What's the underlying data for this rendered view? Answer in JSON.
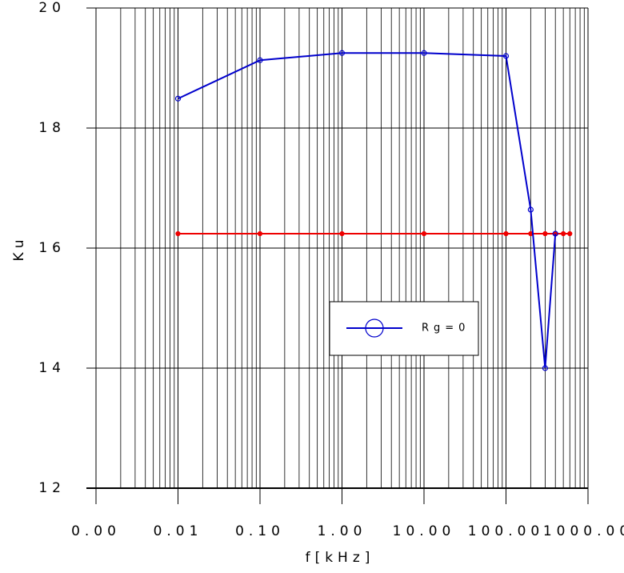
{
  "chart_data": {
    "type": "line",
    "xlabel": "f[kHz]",
    "ylabel": "Ku",
    "xscale": "log",
    "grid": true,
    "minor_grid": true,
    "legend": "center-right",
    "xlim": [
      0.001,
      1000
    ],
    "ylim": [
      12,
      20
    ],
    "xticks": [
      {
        "value": 0.001,
        "label": "0.00"
      },
      0.01,
      {
        "value": 0.1,
        "label": "0.10"
      },
      {
        "value": 1,
        "label": "1.00"
      },
      {
        "value": 10,
        "label": "10.00"
      },
      {
        "value": 100,
        "label": "100.00"
      },
      {
        "value": 1000,
        "label": "1000.00"
      }
    ],
    "yticks": [
      12,
      14,
      16,
      18,
      20
    ],
    "series": [
      {
        "name": "Rg=0",
        "color": "#0000cc",
        "x": [
          0.01,
          0.1,
          1,
          10,
          100,
          200,
          300,
          400
        ],
        "values": [
          18.49,
          19.13,
          19.25,
          19.25,
          19.2,
          16.64,
          14.0,
          16.24
        ]
      },
      {
        "color": "#ee0000",
        "x": [
          0.01,
          0.1,
          1,
          10,
          100,
          200,
          300,
          400,
          500,
          600
        ],
        "values": [
          16.24,
          16.24,
          16.24,
          16.24,
          16.24,
          16.24,
          16.24,
          16.24,
          16.24,
          16.24
        ]
      }
    ]
  }
}
